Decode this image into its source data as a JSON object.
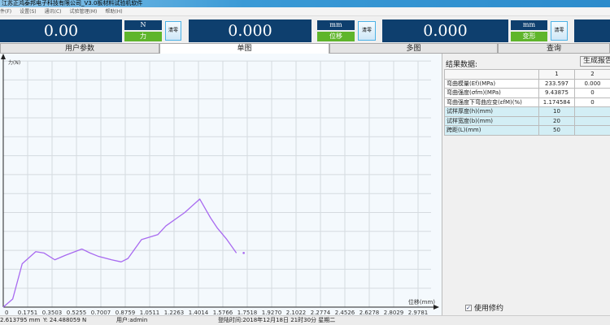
{
  "window": {
    "title": "江苏正鸿泰邦电子科技有限公司_V3.0板材料试验机软件"
  },
  "menu": [
    "件(F)",
    "设置(S)",
    "通讯(C)",
    "试验管理(M)",
    "帮助(H)"
  ],
  "gauges": [
    {
      "value": "0.00",
      "unit": "N",
      "quantity": "力",
      "clear": "清零"
    },
    {
      "value": "0.000",
      "unit": "mm",
      "quantity": "位移",
      "clear": "清零"
    },
    {
      "value": "0.000",
      "unit": "mm",
      "quantity": "变形",
      "clear": "清零"
    }
  ],
  "tabs": [
    {
      "label": "用户参数"
    },
    {
      "label": "单图",
      "active": true
    },
    {
      "label": "多图"
    },
    {
      "label": "查询"
    }
  ],
  "chart_data": {
    "type": "line",
    "xlabel": "位移(mm)",
    "ylabel": "力(N)",
    "x_ticks": [
      "0",
      "0.1751",
      "0.3503",
      "0.5255",
      "0.7007",
      "0.8759",
      "1.0511",
      "1.2263",
      "1.4014",
      "1.5766",
      "1.7518",
      "1.9270",
      "2.1022",
      "2.2774",
      "2.4526",
      "2.6278",
      "2.8029",
      "2.9781"
    ],
    "xlim": [
      0,
      3.05
    ],
    "ylim": [
      0,
      13
    ],
    "grid": true,
    "color": "#a86af0",
    "x": [
      0,
      0.068,
      0.136,
      0.233,
      0.292,
      0.37,
      0.447,
      0.564,
      0.623,
      0.68,
      0.778,
      0.846,
      0.895,
      0.992,
      1.109,
      1.167,
      1.303,
      1.41,
      1.488,
      1.537,
      1.605,
      1.673
    ],
    "y": [
      0,
      0.43,
      2.29,
      2.93,
      2.86,
      2.5,
      2.74,
      3.07,
      2.86,
      2.69,
      2.5,
      2.39,
      2.57,
      3.57,
      3.83,
      4.29,
      5.0,
      5.71,
      4.71,
      4.17,
      3.57,
      2.86
    ]
  },
  "results": {
    "title": "结果数据:",
    "report_button": "生成报告",
    "columns": [
      "",
      "1",
      "2"
    ],
    "rows": [
      {
        "label": "弯曲模量(Ef)(MPa)",
        "v1": "233.597",
        "v2": "0.000"
      },
      {
        "label": "弯曲强度(σfm)(MPa)",
        "v1": "9.43875",
        "v2": "0"
      },
      {
        "label": "弯曲强度下弯曲应变(εfM)(%)",
        "v1": "1.174584",
        "v2": "0"
      },
      {
        "label": "试样厚度(h)(mm)",
        "v1": "10",
        "v2": ""
      },
      {
        "label": "试样宽度(b)(mm)",
        "v1": "20",
        "v2": ""
      },
      {
        "label": "跨距(L)(mm)",
        "v1": "50",
        "v2": ""
      }
    ],
    "use_rounding": "使用修约",
    "use_rounding_checked": true
  },
  "status": {
    "x": "2.613795 mm",
    "y": "Y: 24.488059 N",
    "user": "用户:admin",
    "login": "登陆时间:2018年12月18日 21时30分 星期二"
  }
}
